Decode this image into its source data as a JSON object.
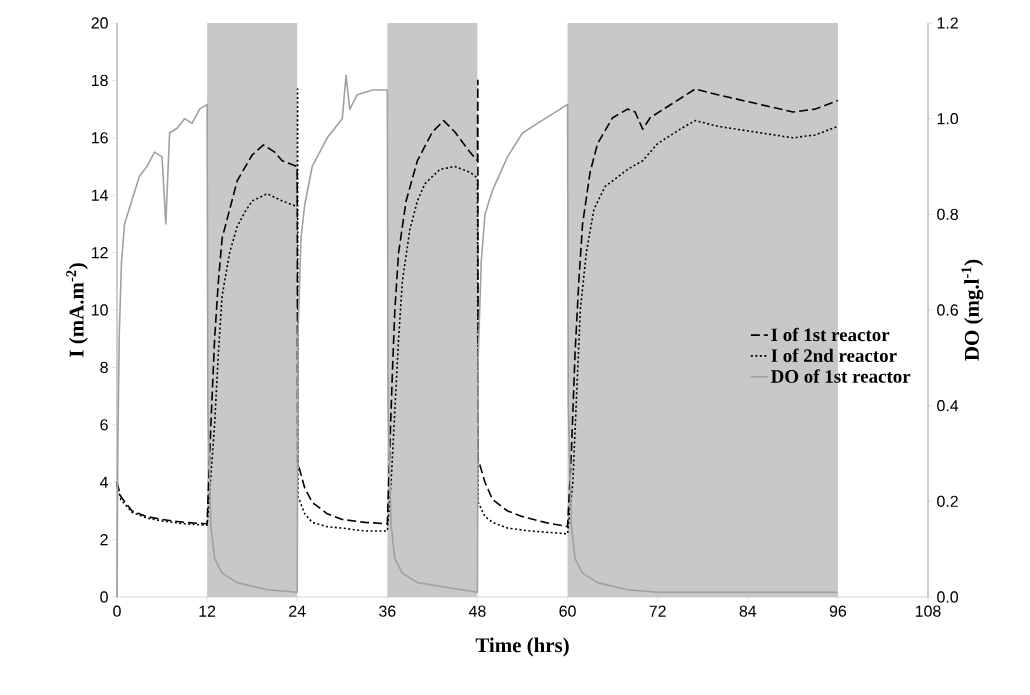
{
  "chart_data": {
    "type": "line",
    "xlabel": "Time (hrs)",
    "ylabel": "I (mA.m$^{-2}$)",
    "y2label": "DO (mg.l$^{-1}$)",
    "xlim": [
      0,
      108
    ],
    "xticks": [
      0,
      12,
      24,
      36,
      48,
      60,
      72,
      84,
      96,
      108
    ],
    "ylim": [
      0,
      20
    ],
    "yticks": [
      0,
      2,
      4,
      6,
      8,
      10,
      12,
      14,
      16,
      18,
      20
    ],
    "y2lim": [
      0,
      1.2
    ],
    "y2ticks": [
      {
        "value": 0,
        "label": "0.0"
      },
      {
        "value": 0.2,
        "label": "0.2"
      },
      {
        "value": 0.4,
        "label": "0.4"
      },
      {
        "value": 0.6,
        "label": "0.6"
      },
      {
        "value": 0.8,
        "label": "0.8"
      },
      {
        "value": 1.0,
        "label": "1.0"
      },
      {
        "value": 1.2,
        "label": "1.2"
      }
    ],
    "legend": "right",
    "bands": [
      {
        "axis": "x",
        "from": 12,
        "to": 24,
        "color": "#c8c8c8"
      },
      {
        "axis": "x",
        "from": 36,
        "to": 48,
        "color": "#c8c8c8"
      },
      {
        "axis": "x",
        "from": 60,
        "to": 96,
        "color": "#c8c8c8"
      }
    ],
    "series": [
      {
        "name": "I of 1st reactor",
        "color": "#000000",
        "line_style": "dashed",
        "x": [
          0,
          0.5,
          2,
          4,
          6,
          9,
          12,
          12.2,
          12.5,
          13,
          13.5,
          14,
          15,
          16,
          18,
          19.5,
          21,
          22,
          24,
          24.05,
          25,
          26,
          28,
          30,
          33,
          36,
          36.3,
          36.7,
          37,
          37.5,
          38.5,
          40,
          42,
          43.5,
          45,
          47,
          48,
          48.05,
          48.1,
          49,
          50,
          52,
          54,
          57,
          60,
          60.5,
          61,
          61.5,
          62,
          63,
          64,
          66,
          68,
          69,
          70,
          71,
          74,
          77,
          80,
          85,
          90,
          93,
          96
        ],
        "values": [
          4.0,
          3.5,
          3.0,
          2.8,
          2.7,
          2.6,
          2.55,
          4.0,
          6,
          9,
          11,
          12.5,
          13.5,
          14.5,
          15.4,
          15.75,
          15.5,
          15.2,
          15.0,
          4.7,
          3.8,
          3.3,
          2.9,
          2.7,
          2.6,
          2.55,
          5,
          8,
          10,
          12,
          13.8,
          15.2,
          16.2,
          16.6,
          16.2,
          15.5,
          15.2,
          18.0,
          4.8,
          4.0,
          3.4,
          3.0,
          2.8,
          2.6,
          2.45,
          5,
          8.5,
          11,
          13,
          14.8,
          15.8,
          16.7,
          17.0,
          16.9,
          16.3,
          16.7,
          17.2,
          17.7,
          17.5,
          17.2,
          16.9,
          17.0,
          17.3
        ]
      },
      {
        "name": "I of 2nd reactor",
        "color": "#000000",
        "line_style": "dotted",
        "x": [
          0,
          0.5,
          2,
          4,
          6,
          9,
          12,
          12.3,
          13,
          13.5,
          14,
          15,
          16,
          17,
          18,
          20,
          22,
          24,
          24.05,
          24.1,
          25,
          26,
          28,
          30,
          33,
          36,
          36.5,
          37,
          37.5,
          38,
          39,
          40,
          41,
          43,
          45,
          47,
          48,
          48.1,
          49,
          50,
          52,
          55,
          60,
          60.7,
          61.2,
          61.7,
          62.5,
          63.5,
          65,
          68,
          70,
          72,
          75,
          77,
          80,
          85,
          90,
          93,
          96
        ],
        "values": [
          3.9,
          3.4,
          2.95,
          2.75,
          2.65,
          2.55,
          2.5,
          3.5,
          6,
          8.5,
          10.5,
          12,
          12.9,
          13.4,
          13.8,
          14.05,
          13.8,
          13.6,
          17.7,
          3.5,
          2.9,
          2.6,
          2.45,
          2.4,
          2.3,
          2.3,
          4,
          6.5,
          9,
          11,
          12.8,
          13.8,
          14.4,
          14.9,
          15.0,
          14.8,
          14.6,
          3.3,
          2.8,
          2.6,
          2.4,
          2.3,
          2.2,
          4,
          7,
          10,
          12,
          13.5,
          14.3,
          14.9,
          15.2,
          15.8,
          16.3,
          16.6,
          16.4,
          16.2,
          16.0,
          16.1,
          16.4
        ]
      },
      {
        "name": "DO of 1st reactor",
        "color": "#a0a0a0",
        "line_style": "solid",
        "axis": "y2",
        "x": [
          0,
          0.1,
          0.3,
          0.6,
          1,
          2,
          3,
          4,
          5,
          6,
          6.5,
          7,
          8,
          9,
          10,
          11,
          12,
          12.1,
          12.5,
          13,
          14,
          16,
          20,
          24,
          24.1,
          24.5,
          25,
          26,
          28,
          30,
          30.5,
          31,
          32,
          34,
          36,
          36.1,
          36.5,
          37,
          38,
          40,
          44,
          48,
          48.1,
          48.5,
          49,
          50,
          52,
          54,
          56,
          58,
          60,
          60.1,
          60.5,
          61,
          62,
          64,
          68,
          72,
          96
        ],
        "values": [
          0,
          0.3,
          0.55,
          0.7,
          0.78,
          0.83,
          0.88,
          0.9,
          0.93,
          0.92,
          0.78,
          0.97,
          0.98,
          1.0,
          0.99,
          1.02,
          1.03,
          0.4,
          0.15,
          0.08,
          0.05,
          0.03,
          0.015,
          0.01,
          0.55,
          0.75,
          0.82,
          0.9,
          0.96,
          1.0,
          1.09,
          1.02,
          1.05,
          1.06,
          1.06,
          0.4,
          0.15,
          0.08,
          0.05,
          0.03,
          0.02,
          0.01,
          0.5,
          0.7,
          0.8,
          0.85,
          0.92,
          0.97,
          0.99,
          1.01,
          1.03,
          0.4,
          0.15,
          0.08,
          0.05,
          0.03,
          0.015,
          0.01,
          0.01
        ]
      }
    ]
  }
}
